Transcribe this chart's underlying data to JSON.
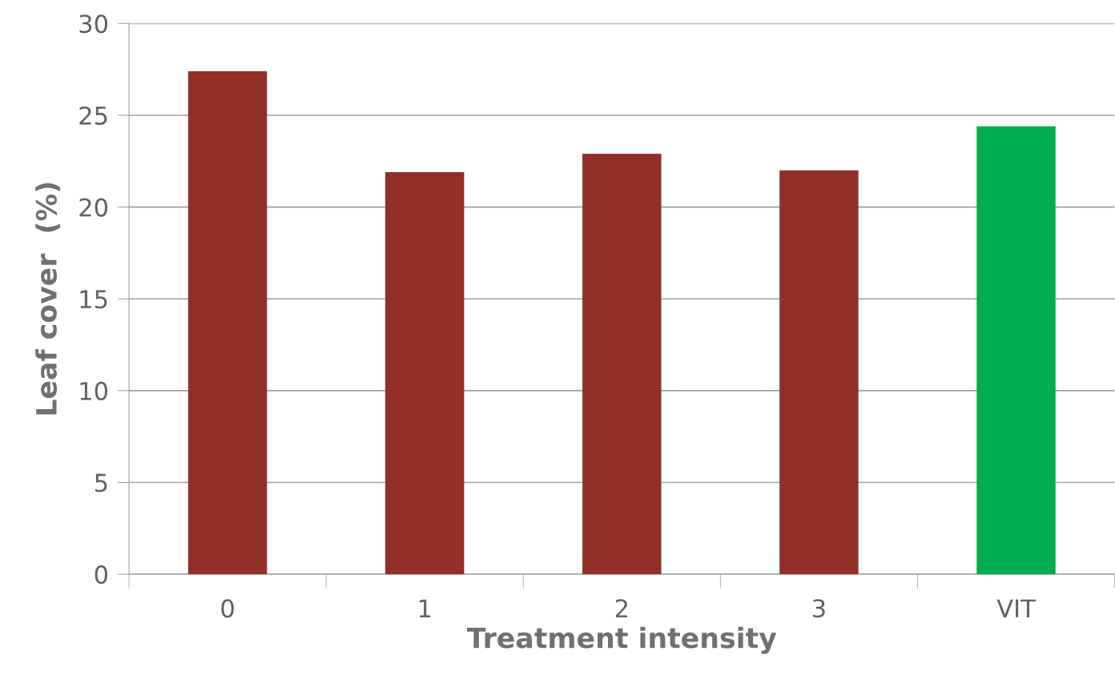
{
  "chart_data": {
    "type": "bar",
    "xlabel": "Treatment intensity",
    "ylabel": "Leaf cover  (%)",
    "categories": [
      "0",
      "1",
      "2",
      "3",
      "VIT"
    ],
    "values": [
      27.4,
      21.9,
      22.9,
      22.0,
      24.4
    ],
    "colors": [
      "#912f28",
      "#912f28",
      "#912f28",
      "#912f28",
      "#00ae4f"
    ],
    "ylim": [
      0,
      30
    ],
    "yticks": [
      0,
      5,
      10,
      15,
      20,
      25,
      30
    ],
    "grid": "y",
    "legend": false
  }
}
